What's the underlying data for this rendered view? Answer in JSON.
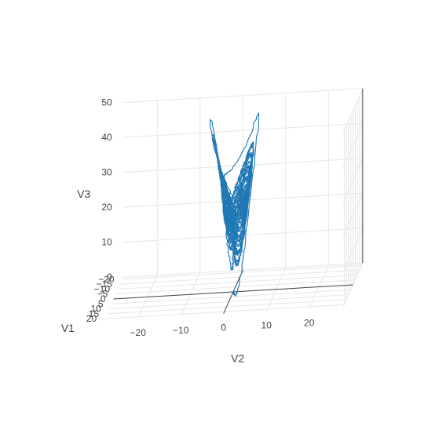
{
  "chart_data": {
    "type": "line3d",
    "description_units": "data units",
    "series": [
      {
        "kind": "lorenz-attractor-trajectory",
        "color": "#1f77b4",
        "params": {
          "sigma": 10,
          "rho": 28,
          "beta": 2.6667,
          "dt": 0.006,
          "steps": 5200,
          "x0": 0.1,
          "y0": 0.0,
          "z0": 0.0,
          "noise": 0.35
        }
      }
    ],
    "axes": {
      "x": {
        "title": "V1",
        "range": [
          -22,
          22
        ],
        "ticks": [
          -20,
          -15,
          -10,
          -5,
          0,
          5,
          10,
          15,
          20
        ],
        "tick_labels": [
          "−20",
          "−15",
          "−10",
          "−5",
          "0",
          "5",
          "10",
          "15",
          "20"
        ]
      },
      "y": {
        "title": "V2",
        "range": [
          -28,
          28
        ],
        "ticks": [
          -20,
          -10,
          0,
          10,
          20
        ],
        "tick_labels": [
          "−20",
          "−10",
          "0",
          "10",
          "20"
        ]
      },
      "z": {
        "title": "V3",
        "range": [
          0,
          50
        ],
        "ticks": [
          0,
          10,
          20,
          30,
          40,
          50
        ],
        "tick_labels": [
          "0",
          "10",
          "20",
          "30",
          "40",
          "50"
        ]
      }
    },
    "grid": true,
    "legend": "none"
  }
}
